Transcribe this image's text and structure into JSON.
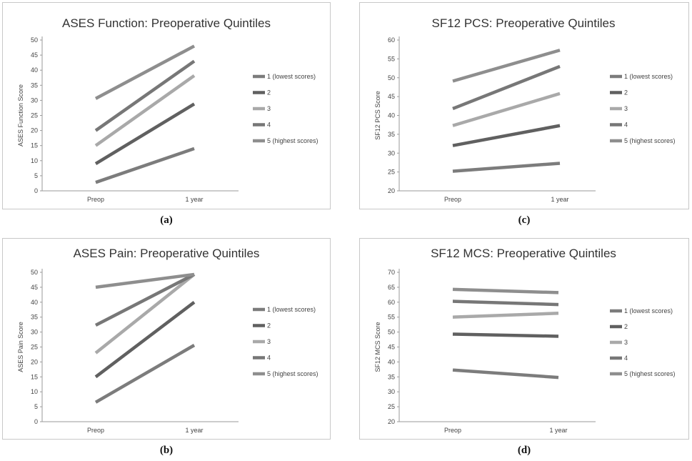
{
  "chart_data": [
    {
      "type": "line",
      "title": "ASES Function: Preoperative Quintiles",
      "ylabel": "ASES Function Score",
      "xlabel": "",
      "categories": [
        "Preop",
        "1 year"
      ],
      "ylim": [
        0,
        50
      ],
      "yticks": [
        0,
        5,
        10,
        15,
        20,
        25,
        30,
        35,
        40,
        45,
        50
      ],
      "grid": false,
      "legend_position": "right",
      "caption": "(a)",
      "series": [
        {
          "name": "1 (lowest scores)",
          "values": [
            2.8,
            14.0
          ],
          "color": "#7c7c7c"
        },
        {
          "name": "2",
          "values": [
            9.0,
            28.8
          ],
          "color": "#606060"
        },
        {
          "name": "3",
          "values": [
            15.0,
            38.2
          ],
          "color": "#a9a9a9"
        },
        {
          "name": "4",
          "values": [
            20.0,
            43.0
          ],
          "color": "#777777"
        },
        {
          "name": "5 (highest scores)",
          "values": [
            30.6,
            48.0
          ],
          "color": "#8e8e8e"
        }
      ]
    },
    {
      "type": "line",
      "title": "SF12 PCS: Preoperative Quintiles",
      "ylabel": "SF12 PCS Score",
      "xlabel": "",
      "categories": [
        "Preop",
        "1 year"
      ],
      "ylim": [
        20,
        60
      ],
      "yticks": [
        20,
        25,
        30,
        35,
        40,
        45,
        50,
        55,
        60
      ],
      "grid": false,
      "legend_position": "right",
      "caption": "(c)",
      "series": [
        {
          "name": "1 (lowest scores)",
          "values": [
            25.2,
            27.3
          ],
          "color": "#7c7c7c"
        },
        {
          "name": "2",
          "values": [
            32.0,
            37.3
          ],
          "color": "#606060"
        },
        {
          "name": "3",
          "values": [
            37.3,
            45.8
          ],
          "color": "#a9a9a9"
        },
        {
          "name": "4",
          "values": [
            41.8,
            53.0
          ],
          "color": "#777777"
        },
        {
          "name": "5 (highest scores)",
          "values": [
            49.1,
            57.3
          ],
          "color": "#8e8e8e"
        }
      ]
    },
    {
      "type": "line",
      "title": "ASES Pain: Preoperative Quintiles",
      "ylabel": "ASES Pain Score",
      "xlabel": "",
      "categories": [
        "Preop",
        "1 year"
      ],
      "ylim": [
        0,
        50
      ],
      "yticks": [
        0,
        5,
        10,
        15,
        20,
        25,
        30,
        35,
        40,
        45,
        50
      ],
      "grid": false,
      "legend_position": "right",
      "caption": "(b)",
      "series": [
        {
          "name": "1 (lowest scores)",
          "values": [
            6.5,
            25.6
          ],
          "color": "#7c7c7c"
        },
        {
          "name": "2",
          "values": [
            15.0,
            40.0
          ],
          "color": "#606060"
        },
        {
          "name": "3",
          "values": [
            23.0,
            49.3
          ],
          "color": "#a9a9a9"
        },
        {
          "name": "4",
          "values": [
            32.3,
            49.3
          ],
          "color": "#777777"
        },
        {
          "name": "5 (highest scores)",
          "values": [
            45.0,
            49.3
          ],
          "color": "#8e8e8e"
        }
      ]
    },
    {
      "type": "line",
      "title": "SF12 MCS: Preoperative Quintiles",
      "ylabel": "SF12 MCS Score",
      "xlabel": "",
      "categories": [
        "Preop",
        "1 year"
      ],
      "ylim": [
        20,
        70
      ],
      "yticks": [
        20,
        25,
        30,
        35,
        40,
        45,
        50,
        55,
        60,
        65,
        70
      ],
      "grid": false,
      "legend_position": "right",
      "caption": "(d)",
      "series": [
        {
          "name": "1 (lowest scores)",
          "values": [
            37.3,
            34.8
          ],
          "color": "#7c7c7c"
        },
        {
          "name": "2",
          "values": [
            49.3,
            48.6
          ],
          "color": "#606060"
        },
        {
          "name": "3",
          "values": [
            55.0,
            56.3
          ],
          "color": "#a9a9a9"
        },
        {
          "name": "4",
          "values": [
            60.3,
            59.2
          ],
          "color": "#777777"
        },
        {
          "name": "5 (highest scores)",
          "values": [
            64.3,
            63.2
          ],
          "color": "#8e8e8e"
        }
      ]
    }
  ]
}
